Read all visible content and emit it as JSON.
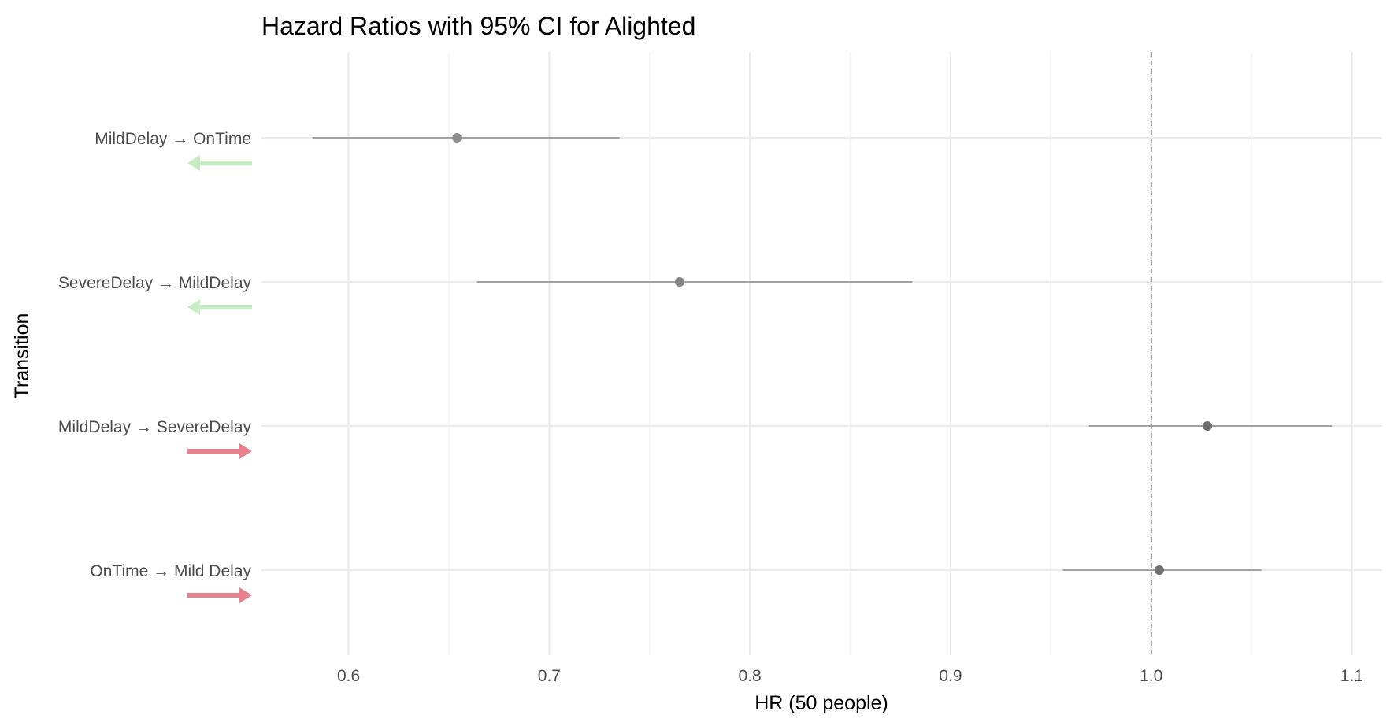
{
  "chart_data": {
    "type": "forest",
    "title": "Hazard Ratios with 95% CI for Alighted",
    "xlabel": "HR (50 people)",
    "ylabel": "Transition",
    "xlim": [
      0.5566,
      1.1151
    ],
    "x_ticks": [
      0.6,
      0.7,
      0.8,
      0.9,
      1.0,
      1.1
    ],
    "x_tick_labels": [
      "0.6",
      "0.7",
      "0.8",
      "0.9",
      "1.0",
      "1.1"
    ],
    "reference_line": 1.0,
    "grid": true,
    "rows": [
      {
        "label": "MildDelay → OnTime",
        "hr": 0.654,
        "lower": 0.582,
        "upper": 0.735,
        "direction": "left",
        "arrow_color": "#c8ecc4",
        "point_color": "#8c8c8c"
      },
      {
        "label": "SevereDelay → MildDelay",
        "hr": 0.765,
        "lower": 0.664,
        "upper": 0.881,
        "direction": "left",
        "arrow_color": "#c8ecc4",
        "point_color": "#858585"
      },
      {
        "label": "MildDelay → SevereDelay",
        "hr": 1.028,
        "lower": 0.969,
        "upper": 1.09,
        "direction": "right",
        "arrow_color": "#e8808e",
        "point_color": "#6e6e6e"
      },
      {
        "label": "OnTime → Mild Delay",
        "hr": 1.004,
        "lower": 0.956,
        "upper": 1.055,
        "direction": "right",
        "arrow_color": "#e8808e",
        "point_color": "#707070"
      }
    ]
  }
}
